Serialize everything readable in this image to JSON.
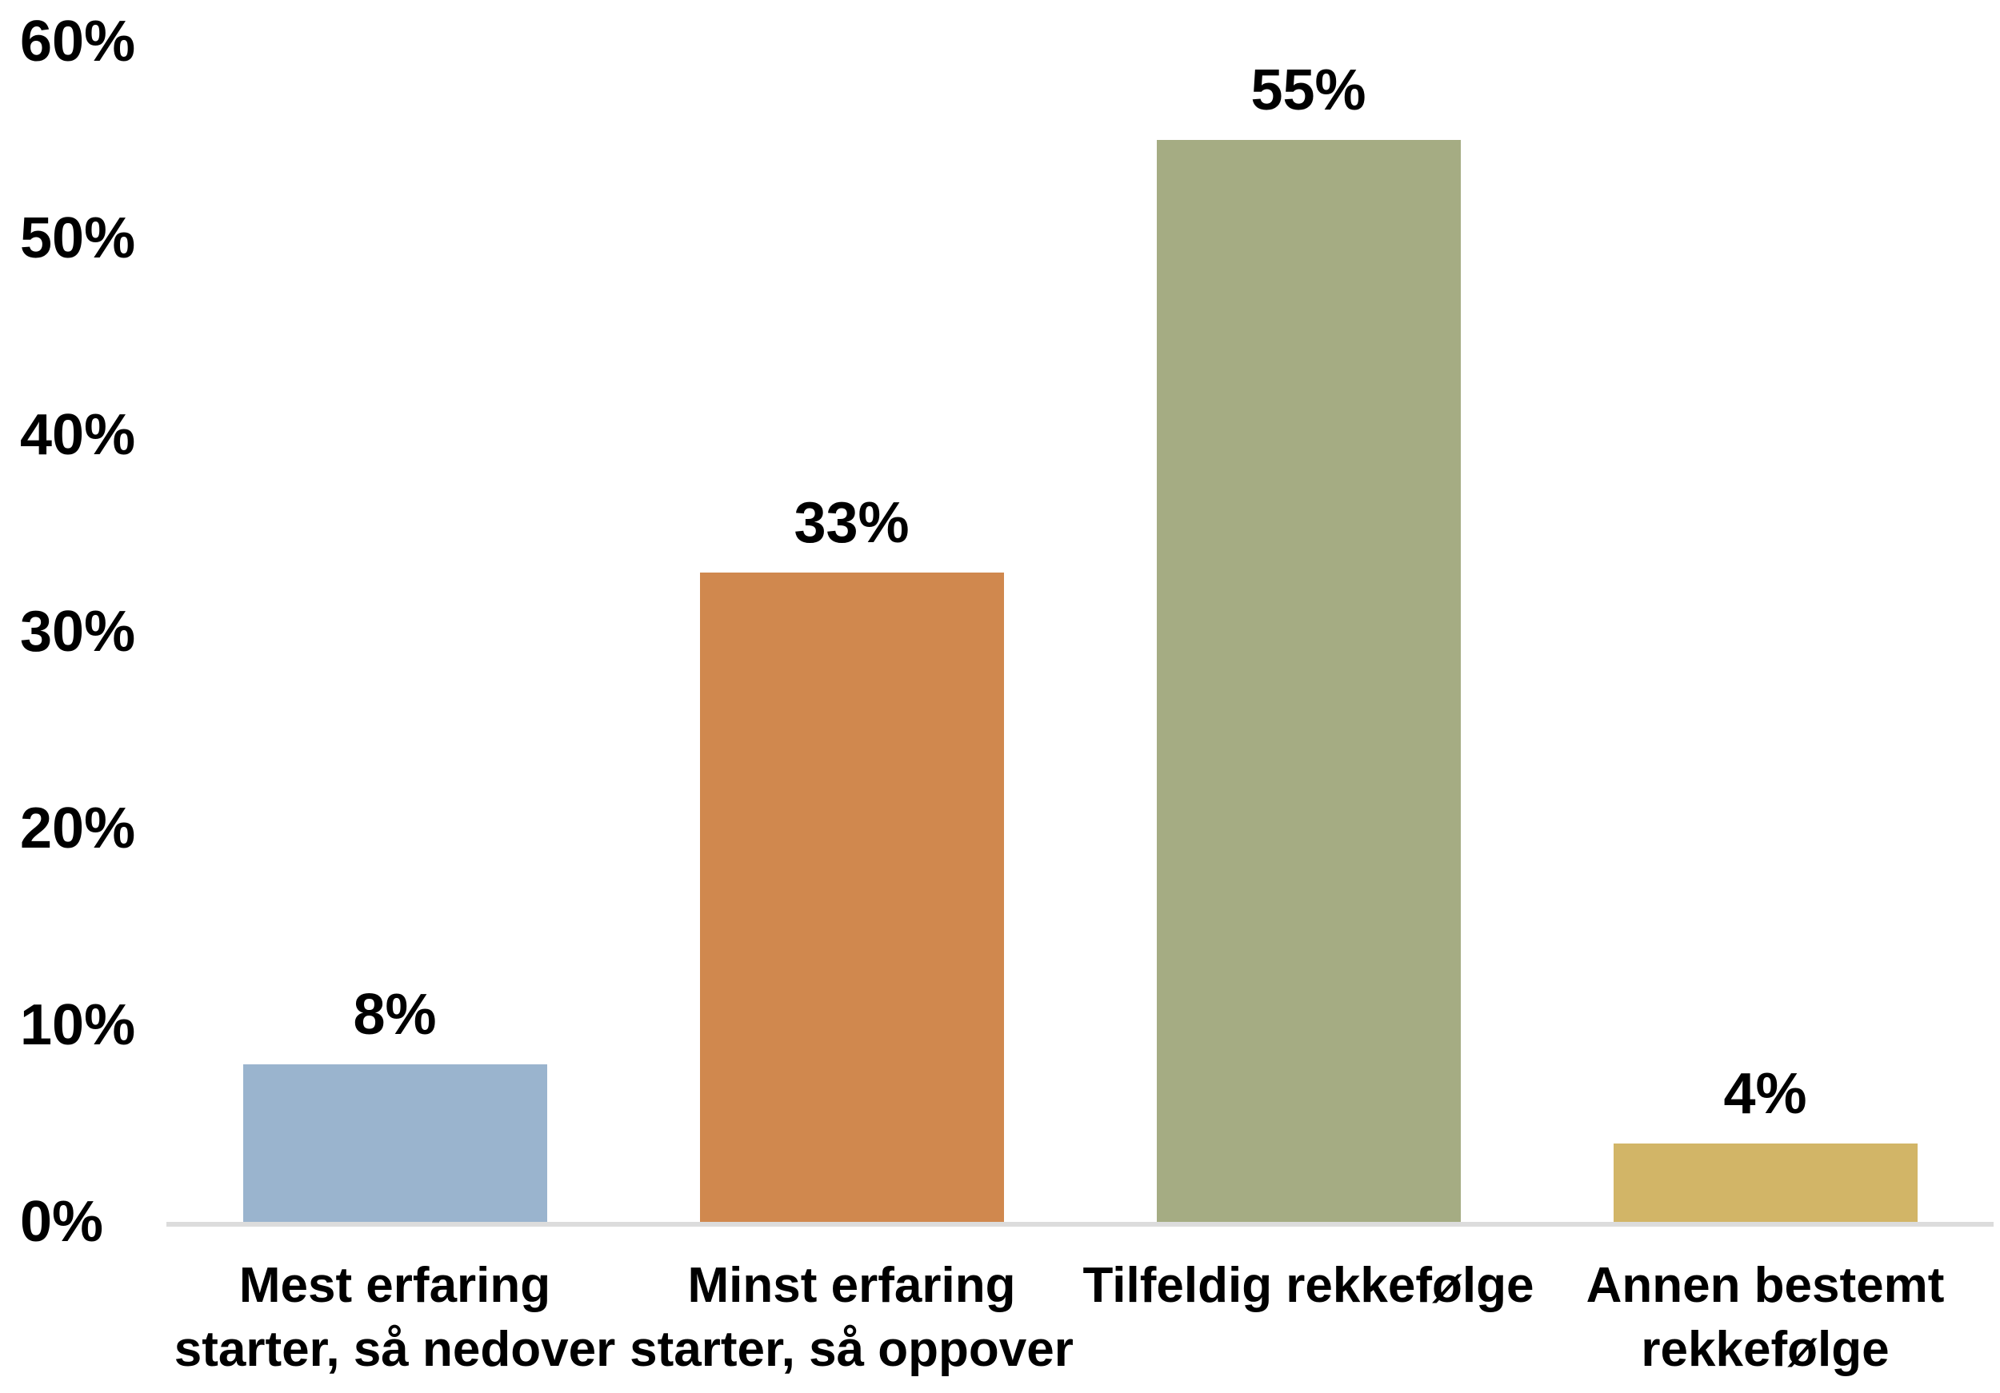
{
  "chart_data": {
    "type": "bar",
    "categories": [
      "Mest erfaring starter, så nedover",
      "Minst erfaring starter, så oppover",
      "Tilfeldig rekkefølge",
      "Annen bestemt rekkefølge"
    ],
    "values": [
      8,
      33,
      55,
      4
    ],
    "bars": [
      {
        "label_lines": [
          "Mest erfaring",
          "starter, så nedover"
        ],
        "value": 8,
        "value_label": "8%",
        "color": "#9AB4CE"
      },
      {
        "label_lines": [
          "Minst erfaring",
          "starter, så oppover"
        ],
        "value": 33,
        "value_label": "33%",
        "color": "#D0884E"
      },
      {
        "label_lines": [
          "Tilfeldig rekkefølge"
        ],
        "value": 55,
        "value_label": "55%",
        "color": "#A5AC83"
      },
      {
        "label_lines": [
          "Annen bestemt",
          "rekkefølge"
        ],
        "value": 4,
        "value_label": "4%",
        "color": "#D2B567"
      }
    ],
    "y_axis": {
      "tick_labels": [
        "0%",
        "10%",
        "20%",
        "30%",
        "40%",
        "50%",
        "60%"
      ],
      "min": 0,
      "max": 60,
      "step": 10
    },
    "ylim": [
      0,
      60
    ],
    "grid": false,
    "legend": false,
    "axis_line_color": "#DCDCDC",
    "text_color": "#000000"
  }
}
